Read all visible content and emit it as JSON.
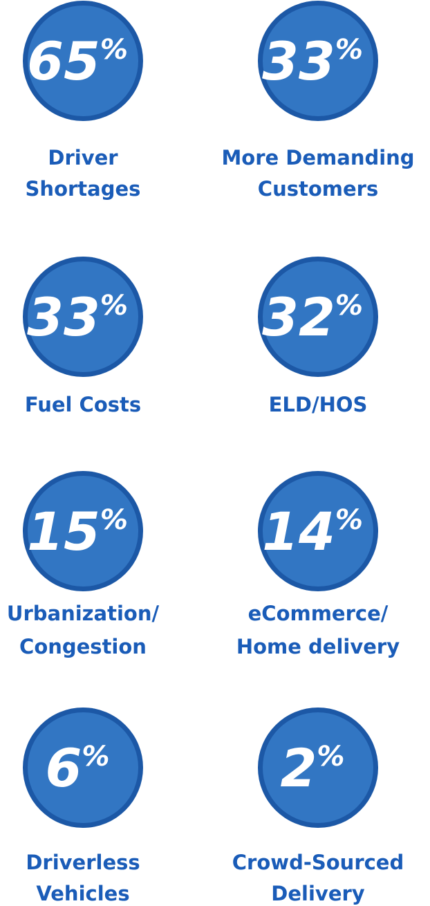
{
  "items": [
    {
      "value": 65,
      "unit": "%",
      "label": [
        "Driver",
        "Shortages"
      ]
    },
    {
      "value": 33,
      "unit": "%",
      "label": [
        "More Demanding",
        "Customers"
      ]
    },
    {
      "value": 33,
      "unit": "%",
      "label": [
        "Fuel Costs"
      ]
    },
    {
      "value": 32,
      "unit": "%",
      "label": [
        "ELD/HOS"
      ]
    },
    {
      "value": 15,
      "unit": "%",
      "label": [
        "Urbanization/",
        "Congestion"
      ]
    },
    {
      "value": 14,
      "unit": "%",
      "label": [
        "eCommerce/",
        "Home delivery"
      ]
    },
    {
      "value": 6,
      "unit": "%",
      "label": [
        "Driverless",
        "Vehicles"
      ]
    },
    {
      "value": 2,
      "unit": "%",
      "label": [
        "Crowd-Sourced",
        "Delivery"
      ]
    }
  ]
}
